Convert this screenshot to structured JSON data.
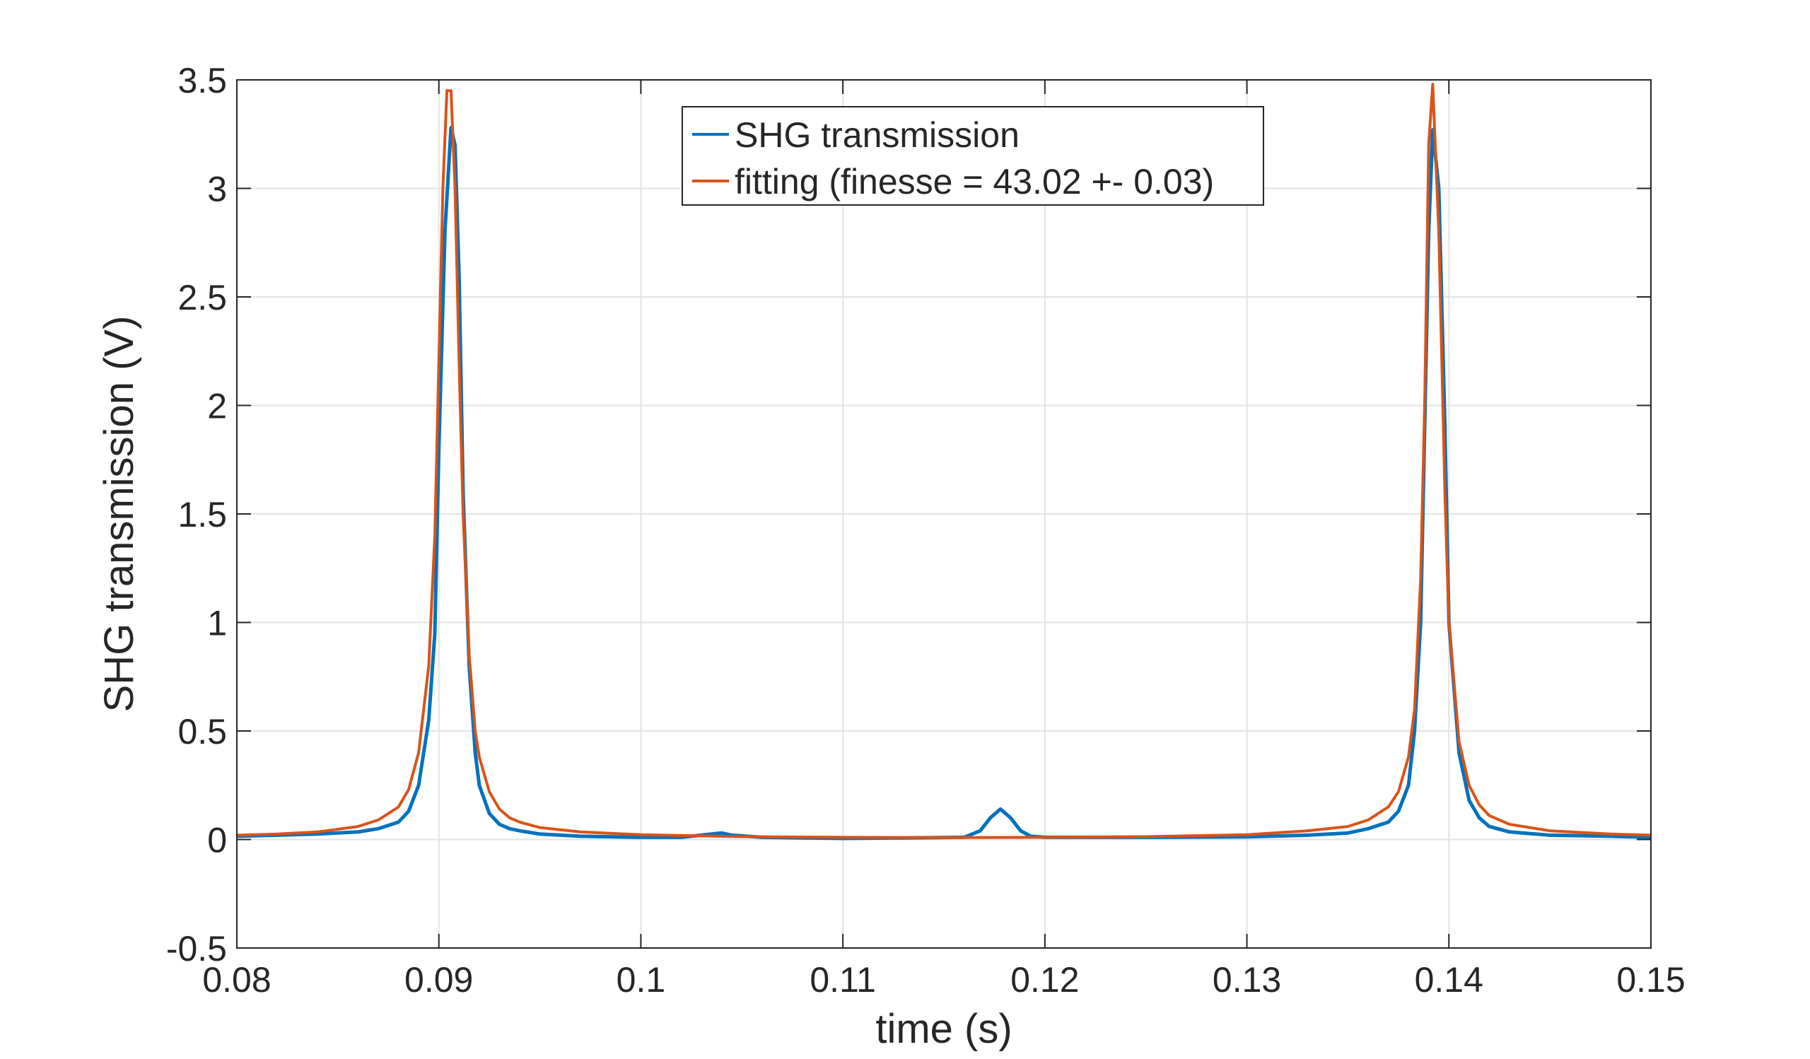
{
  "chart_data": {
    "type": "line",
    "title": "",
    "xlabel": "time (s)",
    "ylabel": "SHG transmission (V)",
    "xlim": [
      0.08,
      0.15
    ],
    "ylim": [
      -0.5,
      3.5
    ],
    "xticks": [
      0.08,
      0.09,
      0.1,
      0.11,
      0.12,
      0.13,
      0.14,
      0.15
    ],
    "xtick_labels": [
      "0.08",
      "0.09",
      "0.1",
      "0.11",
      "0.12",
      "0.13",
      "0.14",
      "0.15"
    ],
    "yticks": [
      -0.5,
      0,
      0.5,
      1,
      1.5,
      2,
      2.5,
      3,
      3.5
    ],
    "ytick_labels": [
      "-0.5",
      "0",
      "0.5",
      "1",
      "1.5",
      "2",
      "2.5",
      "3",
      "3.5"
    ],
    "grid": true,
    "legend_position": "top-center",
    "series": [
      {
        "name": "SHG transmission",
        "color": "#0072BD",
        "x": [
          0.08,
          0.082,
          0.084,
          0.086,
          0.087,
          0.088,
          0.0885,
          0.089,
          0.0895,
          0.0898,
          0.09,
          0.0903,
          0.0906,
          0.0908,
          0.091,
          0.0912,
          0.0915,
          0.0918,
          0.092,
          0.0925,
          0.093,
          0.0935,
          0.094,
          0.095,
          0.097,
          0.1,
          0.102,
          0.104,
          0.1045,
          0.106,
          0.11,
          0.114,
          0.116,
          0.1168,
          0.1173,
          0.1178,
          0.1183,
          0.1188,
          0.1193,
          0.12,
          0.125,
          0.13,
          0.133,
          0.135,
          0.136,
          0.137,
          0.1375,
          0.138,
          0.1383,
          0.1386,
          0.1388,
          0.139,
          0.1392,
          0.1395,
          0.1398,
          0.14,
          0.1405,
          0.141,
          0.1415,
          0.142,
          0.143,
          0.145,
          0.148,
          0.15
        ],
        "y": [
          0.015,
          0.02,
          0.025,
          0.035,
          0.05,
          0.08,
          0.13,
          0.25,
          0.55,
          0.95,
          1.8,
          2.8,
          3.28,
          3.2,
          2.6,
          1.6,
          0.8,
          0.4,
          0.25,
          0.12,
          0.07,
          0.05,
          0.04,
          0.025,
          0.015,
          0.01,
          0.01,
          0.03,
          0.02,
          0.01,
          0.005,
          0.008,
          0.01,
          0.04,
          0.1,
          0.14,
          0.1,
          0.04,
          0.015,
          0.01,
          0.01,
          0.012,
          0.02,
          0.03,
          0.05,
          0.08,
          0.13,
          0.25,
          0.5,
          1.0,
          1.9,
          2.8,
          3.27,
          3.0,
          1.9,
          1.0,
          0.4,
          0.18,
          0.1,
          0.06,
          0.035,
          0.02,
          0.015,
          0.01
        ]
      },
      {
        "name": "fitting (finesse = 43.02 +- 0.03)",
        "color": "#D95319",
        "x": [
          0.08,
          0.082,
          0.084,
          0.086,
          0.087,
          0.088,
          0.0885,
          0.089,
          0.0895,
          0.0898,
          0.09,
          0.0902,
          0.0904,
          0.0906,
          0.0908,
          0.091,
          0.0912,
          0.0915,
          0.0918,
          0.092,
          0.0925,
          0.093,
          0.0935,
          0.094,
          0.095,
          0.097,
          0.1,
          0.105,
          0.11,
          0.115,
          0.12,
          0.125,
          0.13,
          0.133,
          0.135,
          0.136,
          0.137,
          0.1375,
          0.138,
          0.1383,
          0.1386,
          0.1388,
          0.139,
          0.1392,
          0.1395,
          0.1398,
          0.14,
          0.1405,
          0.141,
          0.1415,
          0.142,
          0.143,
          0.145,
          0.148,
          0.15
        ],
        "y": [
          0.02,
          0.025,
          0.035,
          0.06,
          0.09,
          0.15,
          0.23,
          0.4,
          0.8,
          1.4,
          2.2,
          3.0,
          3.45,
          3.45,
          3.0,
          2.2,
          1.5,
          0.85,
          0.5,
          0.38,
          0.22,
          0.14,
          0.1,
          0.08,
          0.055,
          0.035,
          0.022,
          0.013,
          0.01,
          0.009,
          0.01,
          0.013,
          0.022,
          0.04,
          0.06,
          0.09,
          0.15,
          0.22,
          0.38,
          0.6,
          1.2,
          2.0,
          3.2,
          3.48,
          2.8,
          1.6,
          1.0,
          0.45,
          0.25,
          0.16,
          0.11,
          0.07,
          0.04,
          0.025,
          0.02
        ]
      }
    ]
  }
}
